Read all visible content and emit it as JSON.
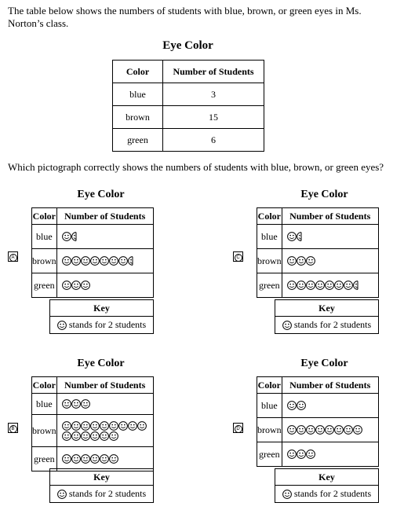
{
  "intro": "The table below shows the numbers of students with blue, brown, or green eyes in Ms. Norton’s class.",
  "main_table": {
    "title": "Eye Color",
    "headers": [
      "Color",
      "Number of Students"
    ],
    "rows": [
      {
        "color": "blue",
        "count": "3"
      },
      {
        "color": "brown",
        "count": "15"
      },
      {
        "color": "green",
        "count": "6"
      }
    ]
  },
  "question": "Which pictograph correctly shows the numbers of students with blue, brown, or green eyes?",
  "options": [
    {
      "letter": "A",
      "title": "Eye Color",
      "headers": [
        "Color",
        "Number of Students"
      ],
      "rows": [
        {
          "color": "blue",
          "faces": 1.5
        },
        {
          "color": "brown",
          "faces": 7.5
        },
        {
          "color": "green",
          "faces": 3
        }
      ],
      "key_title": "Key",
      "key_text": "stands for 2 students"
    },
    {
      "letter": "C",
      "title": "Eye Color",
      "headers": [
        "Color",
        "Number of Students"
      ],
      "rows": [
        {
          "color": "blue",
          "faces": 1.5
        },
        {
          "color": "brown",
          "faces": 3
        },
        {
          "color": "green",
          "faces": 7.5
        }
      ],
      "key_title": "Key",
      "key_text": "stands for 2 students"
    },
    {
      "letter": "B",
      "title": "Eye Color",
      "headers": [
        "Color",
        "Number of Students"
      ],
      "rows": [
        {
          "color": "blue",
          "faces": 3
        },
        {
          "color": "brown",
          "faces": 15
        },
        {
          "color": "green",
          "faces": 6
        }
      ],
      "key_title": "Key",
      "key_text": "stands for 2 students"
    },
    {
      "letter": "D",
      "title": "Eye Color",
      "headers": [
        "Color",
        "Number of Students"
      ],
      "rows": [
        {
          "color": "blue",
          "faces": 2
        },
        {
          "color": "brown",
          "faces": 8
        },
        {
          "color": "green",
          "faces": 3
        }
      ],
      "key_title": "Key",
      "key_text": "stands for 2 students"
    }
  ]
}
